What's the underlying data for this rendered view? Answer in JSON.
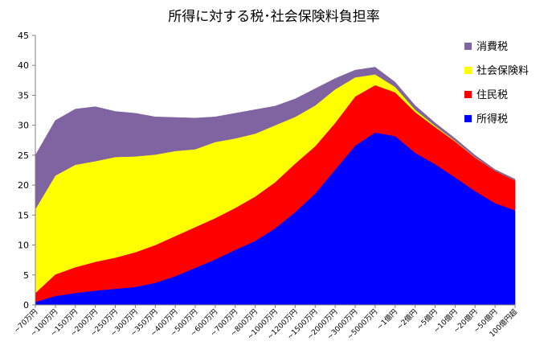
{
  "chart_data": {
    "type": "area",
    "stacked": true,
    "title": "所得に対する税･社会保険料負担率",
    "xlabel": "",
    "ylabel": "",
    "ylim": [
      0,
      45
    ],
    "yticks": [
      0,
      5,
      10,
      15,
      20,
      25,
      30,
      35,
      40,
      45
    ],
    "grid": false,
    "legend_position": "top-right",
    "categories": [
      "~70万円",
      "~100万円",
      "~150万円",
      "~200万円",
      "~250万円",
      "~300万円",
      "~350万円",
      "~400万円",
      "~500万円",
      "~600万円",
      "~700万円",
      "~800万円",
      "~1000万円",
      "~1200万円",
      "~1500万円",
      "~2000万円",
      "~3000万円",
      "~5000万円",
      "~1億円",
      "~2億円",
      "~5億円",
      "~10億円",
      "~20億円",
      "~50億円",
      "100億円超"
    ],
    "series": [
      {
        "name": "所得税",
        "color": "#0000ff",
        "values": [
          0.5,
          1.5,
          2.0,
          2.4,
          2.7,
          3.0,
          3.7,
          4.8,
          6.2,
          7.6,
          9.2,
          10.7,
          12.8,
          15.5,
          18.6,
          22.6,
          26.6,
          28.8,
          28.2,
          25.4,
          23.5,
          21.3,
          19.0,
          17.0,
          15.8
        ]
      },
      {
        "name": "住民税",
        "color": "#ff0000",
        "values": [
          1.5,
          3.6,
          4.3,
          4.8,
          5.2,
          5.8,
          6.3,
          6.7,
          6.8,
          6.9,
          7.0,
          7.4,
          7.7,
          8.1,
          7.9,
          7.8,
          8.2,
          7.9,
          7.3,
          6.8,
          6.2,
          6.0,
          5.6,
          5.4,
          5.0
        ]
      },
      {
        "name": "社会保険料",
        "color": "#ffff00",
        "values": [
          14.0,
          16.5,
          17.1,
          16.8,
          16.8,
          16.0,
          15.1,
          14.2,
          13.0,
          12.7,
          11.6,
          10.5,
          9.5,
          7.8,
          6.8,
          5.6,
          3.2,
          1.8,
          0.9,
          0.4,
          0.2,
          0.1,
          0.05,
          0.0,
          0.0
        ]
      },
      {
        "name": "消費税",
        "color": "#8064a2",
        "values": [
          9.0,
          9.2,
          9.3,
          9.1,
          7.6,
          7.2,
          6.3,
          5.6,
          5.2,
          4.2,
          4.2,
          4.0,
          3.2,
          3.0,
          2.8,
          1.8,
          1.2,
          1.2,
          0.8,
          0.7,
          0.5,
          0.4,
          0.35,
          0.2,
          0.2
        ]
      }
    ]
  }
}
